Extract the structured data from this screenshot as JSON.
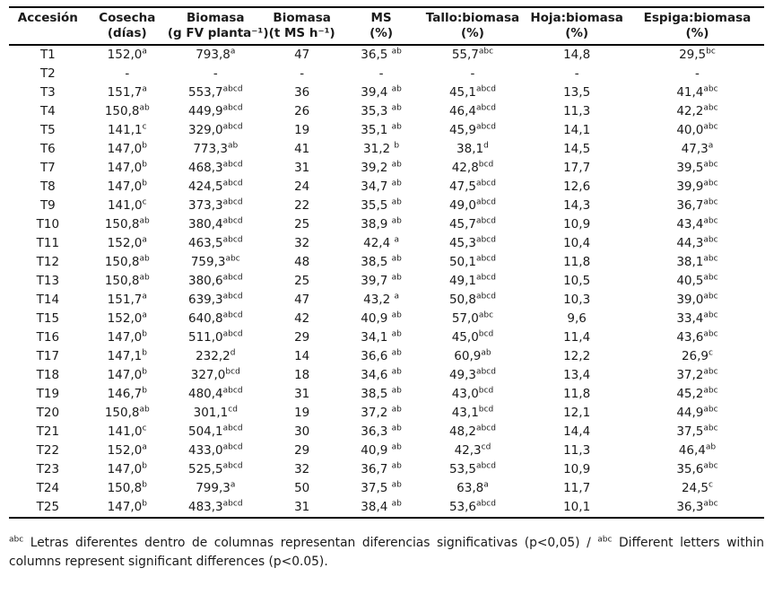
{
  "table": {
    "headers": [
      {
        "line1": "Accesión",
        "line2": ""
      },
      {
        "line1": "Cosecha",
        "line2": "(días)"
      },
      {
        "line1": "Biomasa",
        "line2": "(g FV planta⁻¹)"
      },
      {
        "line1": "Biomasa",
        "line2": "(t MS h⁻¹)"
      },
      {
        "line1": "MS",
        "line2": "(%)"
      },
      {
        "line1": "Tallo:biomasa",
        "line2": "(%)"
      },
      {
        "line1": "Hoja:biomasa",
        "line2": "(%)"
      },
      {
        "line1": "Espiga:biomasa",
        "line2": "(%)"
      }
    ],
    "rows": [
      [
        "T1",
        "152,0^a",
        "793,8^a",
        "47",
        "36,5 ^ab",
        "55,7^abc",
        "14,8",
        "29,5^bc"
      ],
      [
        "T2",
        "-",
        "-",
        "-",
        "-",
        "-",
        "-",
        "-"
      ],
      [
        "T3",
        "151,7^a",
        "553,7^abcd",
        "36",
        "39,4 ^ab",
        "45,1^abcd",
        "13,5",
        "41,4^abc"
      ],
      [
        "T4",
        "150,8^ab",
        "449,9^abcd",
        "26",
        "35,3 ^ab",
        "46,4^abcd",
        "11,3",
        "42,2^abc"
      ],
      [
        "T5",
        "141,1^c",
        "329,0^abcd",
        "19",
        "35,1 ^ab",
        "45,9^abcd",
        "14,1",
        "40,0^abc"
      ],
      [
        "T6",
        "147,0^b",
        "773,3^ab",
        "41",
        "31,2 ^b",
        "38,1^d",
        "14,5",
        "47,3^a"
      ],
      [
        "T7",
        "147,0^b",
        "468,3^abcd",
        "31",
        "39,2 ^ab",
        "42,8^bcd",
        "17,7",
        "39,5^abc"
      ],
      [
        "T8",
        "147,0^b",
        "424,5^abcd",
        "24",
        "34,7 ^ab",
        "47,5^abcd",
        "12,6",
        "39,9^abc"
      ],
      [
        "T9",
        "141,0^c",
        "373,3^abcd",
        "22",
        "35,5 ^ab",
        "49,0^abcd",
        "14,3",
        "36,7^abc"
      ],
      [
        "T10",
        "150,8^ab",
        "380,4^abcd",
        "25",
        "38,9 ^ab",
        "45,7^abcd",
        "10,9",
        "43,4^abc"
      ],
      [
        "T11",
        "152,0^a",
        "463,5^abcd",
        "32",
        "42,4 ^a",
        "45,3^abcd",
        "10,4",
        "44,3^abc"
      ],
      [
        "T12",
        "150,8^ab",
        "759,3^abc",
        "48",
        "38,5 ^ab",
        "50,1^abcd",
        "11,8",
        "38,1^abc"
      ],
      [
        "T13",
        "150,8^ab",
        "380,6^abcd",
        "25",
        "39,7 ^ab",
        "49,1^abcd",
        "10,5",
        "40,5^abc"
      ],
      [
        "T14",
        "151,7^a",
        "639,3^abcd",
        "47",
        "43,2 ^a",
        "50,8^abcd",
        "10,3",
        "39,0^abc"
      ],
      [
        "T15",
        "152,0^a",
        "640,8^abcd",
        "42",
        "40,9 ^ab",
        "57,0^abc",
        "9,6",
        "33,4^abc"
      ],
      [
        "T16",
        "147,0^b",
        "511,0^abcd",
        "29",
        "34,1 ^ab",
        "45,0^bcd",
        "11,4",
        "43,6^abc"
      ],
      [
        "T17",
        "147,1^b",
        "232,2^d",
        "14",
        "36,6 ^ab",
        "60,9^ab",
        "12,2",
        "26,9^c"
      ],
      [
        "T18",
        "147,0^b",
        "327,0^bcd",
        "18",
        "34,6 ^ab",
        "49,3^abcd",
        "13,4",
        "37,2^abc"
      ],
      [
        "T19",
        "146,7^b",
        "480,4^abcd",
        "31",
        "38,5 ^ab",
        "43,0^bcd",
        "11,8",
        "45,2^abc"
      ],
      [
        "T20",
        "150,8^ab",
        "301,1^cd",
        "19",
        "37,2 ^ab",
        "43,1^bcd",
        "12,1",
        "44,9^abc"
      ],
      [
        "T21",
        "141,0^c",
        "504,1^abcd",
        "30",
        "36,3 ^ab",
        "48,2^abcd",
        "14,4",
        "37,5^abc"
      ],
      [
        "T22",
        "152,0^a",
        "433,0^abcd",
        "29",
        "40,9 ^ab",
        "42,3^cd",
        "11,3",
        "46,4^ab"
      ],
      [
        "T23",
        "147,0^b",
        "525,5^abcd",
        "32",
        "36,7 ^ab",
        "53,5^abcd",
        "10,9",
        "35,6^abc"
      ],
      [
        "T24",
        "150,8^b",
        "799,3^a",
        "50",
        "37,5 ^ab",
        "63,8^a",
        "11,7",
        "24,5^c"
      ],
      [
        "T25",
        "147,0^b",
        "483,3^abcd",
        "31",
        "38,4 ^ab",
        "53,6^abcd",
        "10,1",
        "36,3^abc"
      ]
    ]
  },
  "footnote": {
    "segments": [
      {
        "sup": "abc"
      },
      {
        "text": " Letras diferentes dentro de columnas representan diferencias significativas (p<0,05) / "
      },
      {
        "sup": "abc"
      },
      {
        "text": " Different letters within columns represent significant differences (p<0.05)."
      }
    ]
  }
}
